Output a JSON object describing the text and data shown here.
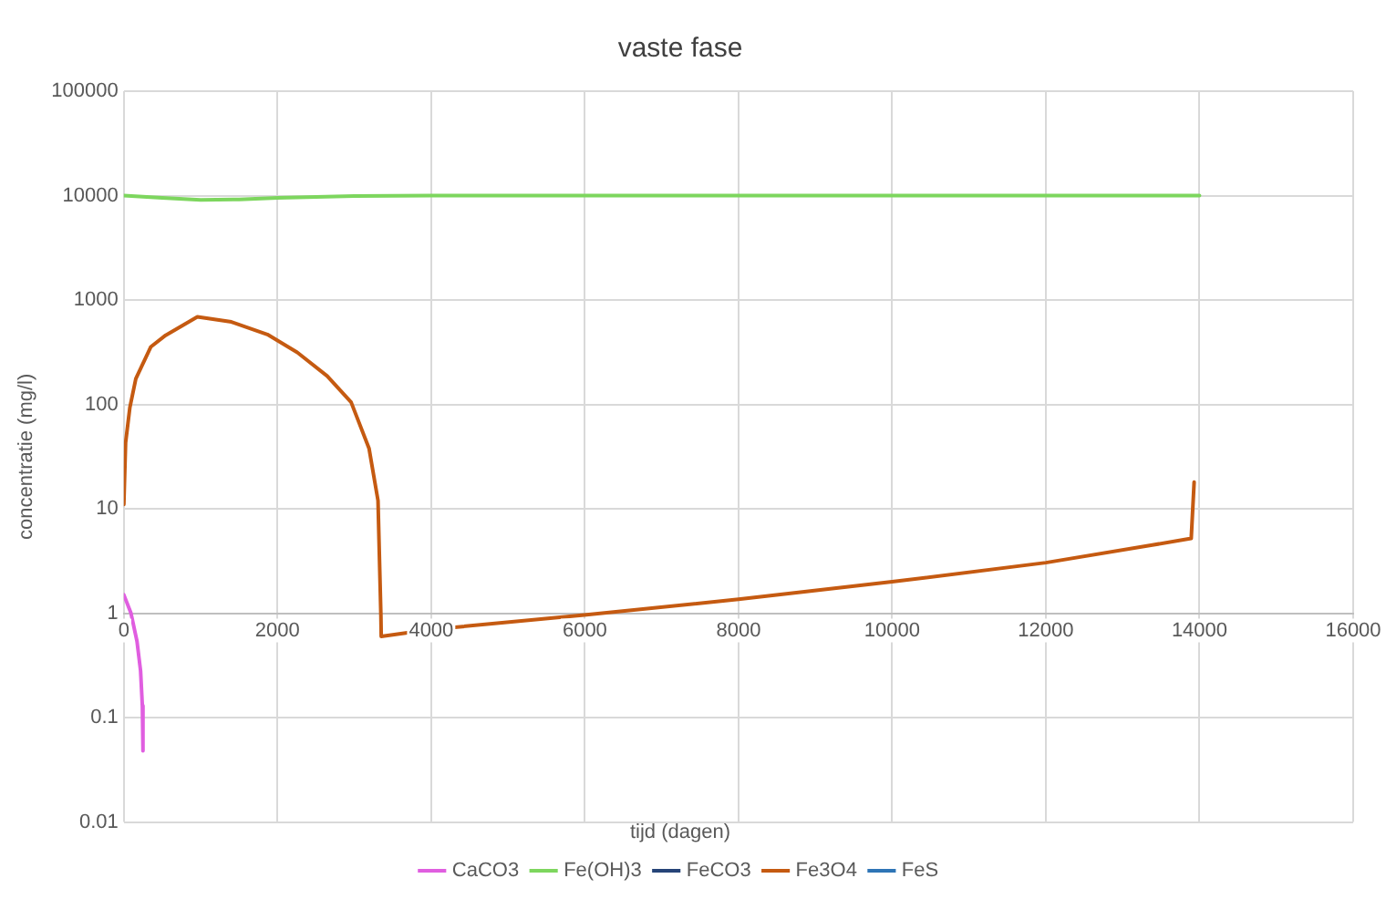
{
  "chart_data": {
    "type": "line",
    "title": "vaste fase",
    "xlabel": "tijd (dagen)",
    "ylabel": "concentratie (mg/l)",
    "log": "y",
    "grid": true,
    "legend": "bottom",
    "marker": "none",
    "line_style": "solid",
    "xlim": [
      0,
      16000
    ],
    "xticks": [
      0,
      2000,
      4000,
      6000,
      8000,
      10000,
      12000,
      14000,
      16000
    ],
    "ylim": [
      0.01,
      100000
    ],
    "yticks": [
      0.01,
      0.1,
      1,
      10,
      100,
      1000,
      10000,
      100000
    ],
    "series": [
      {
        "name": "CaCO3",
        "color": "#e05ee0",
        "x": [
          0,
          93,
          171,
          218,
          241,
          249
        ],
        "values": [
          1.5,
          1.0,
          0.54,
          0.28,
          0.13,
          0.048
        ]
      },
      {
        "name": "Fe(OH)3",
        "color": "#7dd65e",
        "x": [
          0,
          500,
          1000,
          1500,
          2000,
          3000,
          4000,
          14000
        ],
        "values": [
          10000,
          9500,
          9100,
          9200,
          9500,
          9900,
          10000,
          10000
        ]
      },
      {
        "name": "FeCO3",
        "color": "#264478"
      },
      {
        "name": "Fe3O4",
        "color": "#c55a11",
        "x": [
          0,
          23,
          78,
          156,
          350,
          545,
          957,
          1400,
          1868,
          2257,
          2646,
          2958,
          3191,
          3308,
          3346,
          3350,
          4008,
          5993,
          8000,
          10000,
          12000,
          13386,
          13892,
          13930
        ],
        "values": [
          11,
          43,
          93,
          176,
          355,
          460,
          690,
          617,
          468,
          315,
          187,
          105,
          38,
          12,
          0.93,
          0.6,
          0.7,
          0.96,
          1.36,
          2.0,
          3.05,
          4.5,
          5.2,
          18
        ]
      },
      {
        "name": "FeS",
        "color": "#2e75b6"
      }
    ]
  }
}
